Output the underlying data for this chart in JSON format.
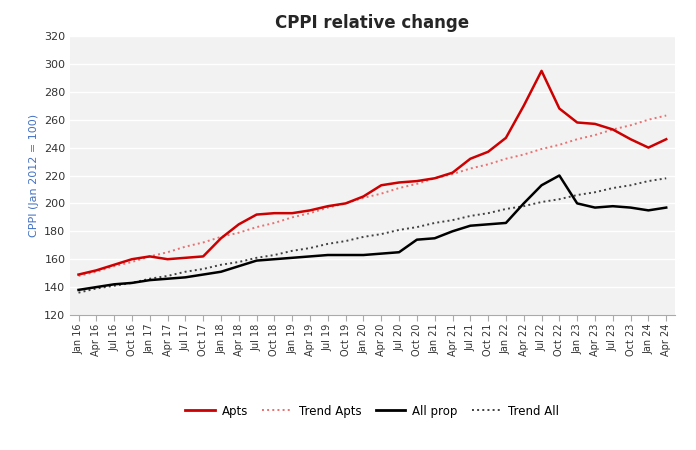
{
  "title": "CPPI relative change",
  "ylabel": "CPPI (Jan 2012 = 100)",
  "ylim": [
    120,
    320
  ],
  "yticks": [
    120,
    140,
    160,
    180,
    200,
    220,
    240,
    260,
    280,
    300,
    320
  ],
  "background_color": "#ffffff",
  "plot_bg_color": "#f2f2f2",
  "apts_color": "#cc0000",
  "all_color": "#000000",
  "trend_apts_color": "#e87070",
  "trend_all_color": "#404040",
  "legend_items": [
    "Apts",
    "Trend Apts",
    "All prop",
    "Trend All"
  ],
  "x_labels": [
    "Jan 16",
    "Apr 16",
    "Jul 16",
    "Oct 16",
    "Jan 17",
    "Apr 17",
    "Jul 17",
    "Oct 17",
    "Jan 18",
    "Apr 18",
    "Jul 18",
    "Oct 18",
    "Jan 19",
    "Apr 19",
    "Jul 19",
    "Oct 19",
    "Jan 20",
    "Apr 20",
    "Jul 20",
    "Oct 20",
    "Jan 21",
    "Apr 21",
    "Jul 21",
    "Oct 21",
    "Jan 22",
    "Apr 22",
    "Jul 22",
    "Oct 22",
    "Jan 23",
    "Apr 23",
    "Jul 23",
    "Oct 23",
    "Jan 24",
    "Apr 24"
  ],
  "apts": [
    149,
    152,
    156,
    160,
    162,
    160,
    161,
    162,
    175,
    185,
    192,
    193,
    193,
    195,
    198,
    200,
    205,
    213,
    215,
    216,
    218,
    222,
    232,
    237,
    247,
    270,
    295,
    268,
    258,
    257,
    253,
    246,
    240,
    246
  ],
  "all_prop": [
    138,
    140,
    142,
    143,
    145,
    146,
    147,
    149,
    151,
    155,
    159,
    160,
    161,
    162,
    163,
    163,
    163,
    164,
    165,
    174,
    175,
    180,
    184,
    185,
    186,
    200,
    213,
    220,
    200,
    197,
    198,
    197,
    195,
    197
  ],
  "trend_apts": [
    148,
    151,
    155,
    158,
    162,
    165,
    169,
    172,
    176,
    179,
    183,
    186,
    190,
    193,
    197,
    200,
    204,
    207,
    211,
    214,
    218,
    221,
    225,
    228,
    232,
    235,
    239,
    242,
    246,
    249,
    253,
    256,
    260,
    263
  ],
  "trend_all": [
    136,
    139,
    141,
    143,
    146,
    148,
    151,
    153,
    156,
    158,
    161,
    163,
    166,
    168,
    171,
    173,
    176,
    178,
    181,
    183,
    186,
    188,
    191,
    193,
    196,
    198,
    201,
    203,
    206,
    208,
    211,
    213,
    216,
    218
  ]
}
